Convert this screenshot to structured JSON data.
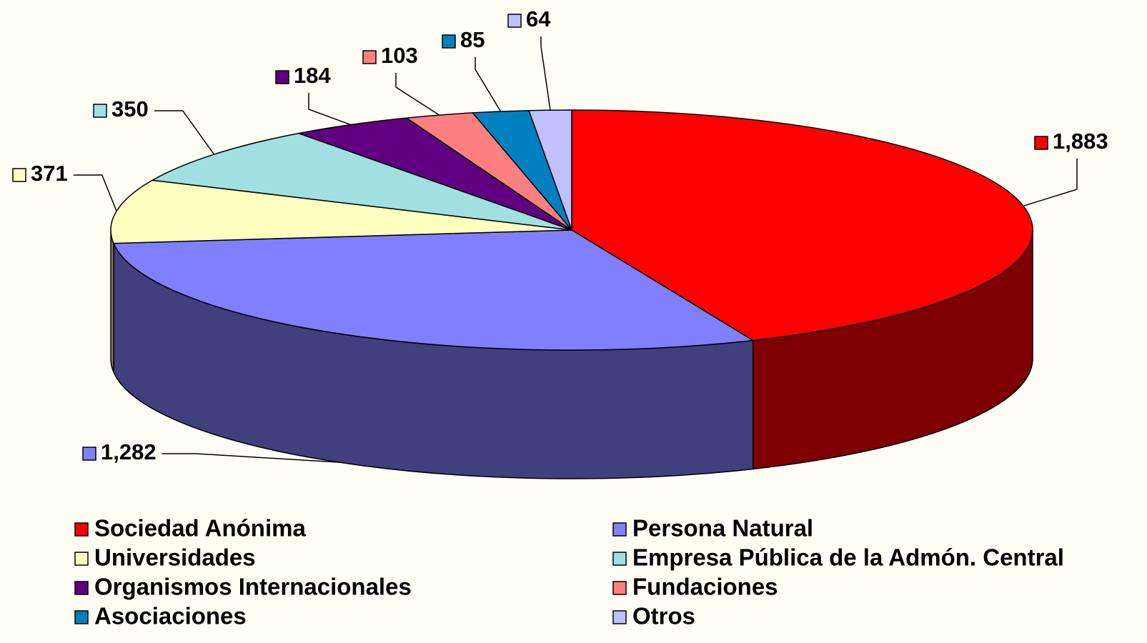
{
  "chart_data": {
    "type": "pie3d",
    "categories": [
      "Sociedad Anónima",
      "Persona Natural",
      "Universidades",
      "Empresa Pública de la Admón. Central",
      "Organismos Internacionales",
      "Fundaciones",
      "Asociaciones",
      "Otros"
    ],
    "values": [
      1883,
      1282,
      371,
      350,
      184,
      103,
      85,
      64
    ],
    "value_labels": [
      "1,883",
      "1,282",
      "371",
      "350",
      "184",
      "103",
      "85",
      "64"
    ],
    "colors": [
      "#ff0000",
      "#8080ff",
      "#ffffc0",
      "#a0e0e0",
      "#600080",
      "#ff8080",
      "#0080c0",
      "#c0c0ff"
    ],
    "legend": "bottom"
  }
}
